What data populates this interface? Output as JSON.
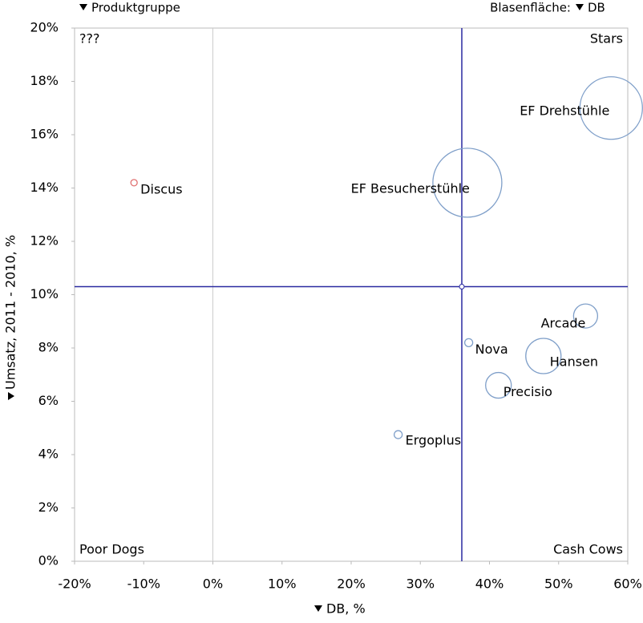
{
  "chart_data": {
    "type": "bubble",
    "xlabel": "DB, %",
    "ylabel": "Umsatz, 2011 - 2010, %",
    "color_by": "Produktgruppe",
    "size_label": "Blasenfläche:",
    "size_by": "DB",
    "quadrant_labels": [
      "???",
      "Stars",
      "Poor Dogs",
      "Cash Cows"
    ],
    "labels": [
      "Discus",
      "EF Besucherstühle",
      "EF Drehstühle",
      "Arcade",
      "Nova",
      "Hansen",
      "Precisio",
      "Ergoplus"
    ],
    "x": [
      -11.4,
      36.8,
      57.6,
      53.9,
      37.0,
      47.8,
      41.3,
      26.8
    ],
    "y": [
      14.2,
      14.2,
      17.0,
      9.2,
      8.2,
      7.7,
      6.6,
      4.75
    ],
    "size": [
      16,
      1850,
      1520,
      225,
      25,
      484,
      256,
      25
    ],
    "colors": [
      "#e07070",
      "#7f9fc9",
      "#7f9fc9",
      "#7f9fc9",
      "#7f9fc9",
      "#7f9fc9",
      "#7f9fc9",
      "#7f9fc9"
    ],
    "reference_lines": {
      "x": 36,
      "y": 10.3,
      "color": "#2a2aa0"
    },
    "zero_line": true,
    "grid": false,
    "xlim": [
      -20,
      60
    ],
    "xticks": [
      {
        "value": -20,
        "label": "-20%"
      },
      {
        "value": -10,
        "label": "-10%"
      },
      {
        "value": 0,
        "label": "0%"
      },
      {
        "value": 10,
        "label": "10%"
      },
      {
        "value": 20,
        "label": "20%"
      },
      {
        "value": 30,
        "label": "30%"
      },
      {
        "value": 40,
        "label": "40%"
      },
      {
        "value": 50,
        "label": "50%"
      },
      {
        "value": 60,
        "label": "60%"
      }
    ],
    "ylim": [
      0,
      20
    ],
    "yticks": [
      {
        "value": 0,
        "label": "0%"
      },
      {
        "value": 2,
        "label": "2%"
      },
      {
        "value": 4,
        "label": "4%"
      },
      {
        "value": 6,
        "label": "6%"
      },
      {
        "value": 8,
        "label": "8%"
      },
      {
        "value": 10,
        "label": "10%"
      },
      {
        "value": 12,
        "label": "12%"
      },
      {
        "value": 14,
        "label": "14%"
      },
      {
        "value": 16,
        "label": "16%"
      },
      {
        "value": 18,
        "label": "18%"
      },
      {
        "value": 20,
        "label": "20%"
      }
    ]
  }
}
